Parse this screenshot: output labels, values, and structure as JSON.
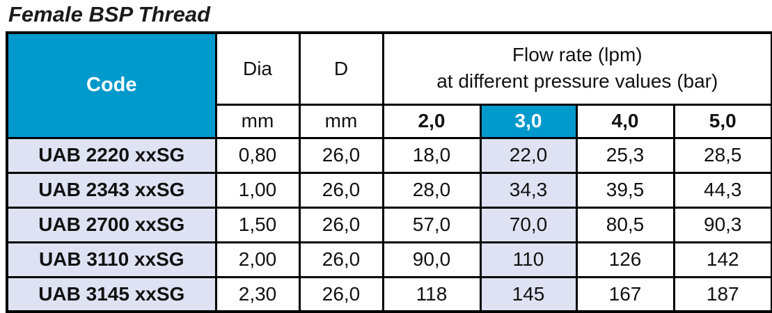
{
  "title": "Female BSP Thread",
  "table": {
    "header": {
      "code": "Code",
      "dia": "Dia",
      "d": "D",
      "flow_line1": "Flow rate (lpm)",
      "flow_line2": "at different pressure values (bar)",
      "units": [
        "mm",
        "mm"
      ],
      "pressures": [
        "2,0",
        "3,0",
        "4,0",
        "5,0"
      ]
    },
    "rows": [
      [
        "UAB 2220 xxSG",
        "0,80",
        "26,0",
        "18,0",
        "22,0",
        "25,3",
        "28,5"
      ],
      [
        "UAB 2343 xxSG",
        "1,00",
        "26,0",
        "28,0",
        "34,3",
        "39,5",
        "44,3"
      ],
      [
        "UAB 2700 xxSG",
        "1,50",
        "26,0",
        "57,0",
        "70,0",
        "80,5",
        "90,3"
      ],
      [
        "UAB 3110 xxSG",
        "2,00",
        "26,0",
        "90,0",
        "110",
        "126",
        "142"
      ],
      [
        "UAB 3145 xxSG",
        "2,30",
        "26,0",
        "118",
        "145",
        "167",
        "187"
      ]
    ]
  }
}
